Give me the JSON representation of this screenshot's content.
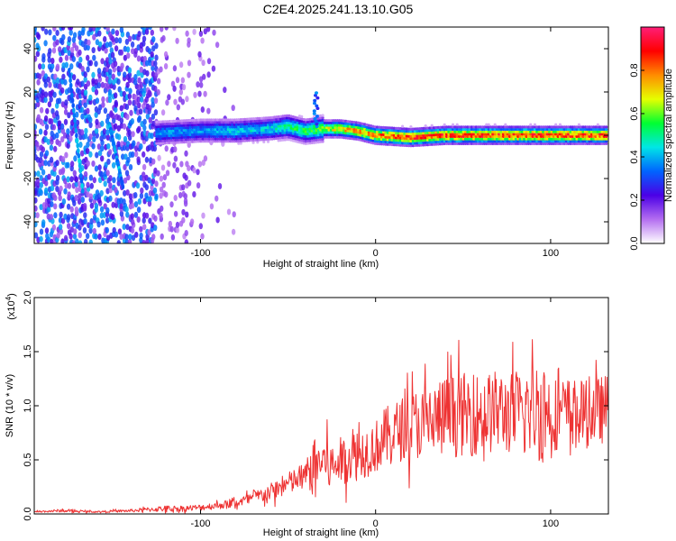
{
  "title": "C2E4.2025.241.13.10.G05",
  "chart_data": [
    {
      "type": "heatmap",
      "name": "spectrogram",
      "xlabel": "Height of straight line (km)",
      "ylabel": "Frequency (Hz)",
      "xlim": [
        -195,
        133
      ],
      "ylim": [
        -50,
        50
      ],
      "xticks": [
        -100,
        0,
        100
      ],
      "xtick_labels": [
        "-100",
        "0",
        "100"
      ],
      "yticks": [
        -40,
        -20,
        0,
        20,
        40
      ],
      "ytick_labels": [
        "-40",
        "-20",
        "0",
        "20",
        "40"
      ],
      "ridge": {
        "x": [
          -125,
          -100,
          -80,
          -60,
          -50,
          -40,
          -30,
          -20,
          -10,
          0,
          20,
          40,
          60,
          80,
          100,
          120,
          133
        ],
        "y": [
          1,
          2,
          2,
          3,
          4,
          2,
          3,
          3,
          2,
          0,
          -1,
          0,
          0,
          0,
          0,
          0,
          0
        ],
        "amplitude": [
          0.4,
          0.4,
          0.45,
          0.45,
          0.55,
          0.55,
          0.65,
          0.75,
          0.8,
          0.85,
          0.9,
          0.9,
          0.9,
          0.9,
          0.9,
          0.88,
          0.88
        ]
      },
      "colorbar": {
        "label": "Normalized spectral amplitude",
        "range": [
          0.0,
          1.0
        ],
        "ticks": [
          0.0,
          0.2,
          0.4,
          0.6,
          0.8
        ],
        "tick_labels": [
          "0.0",
          "0.2",
          "0.4",
          "0.6",
          "0.8"
        ],
        "colors": [
          "#ffffff",
          "#b46ef0",
          "#4b00e6",
          "#0064ff",
          "#00e6e6",
          "#00ff32",
          "#e6ff00",
          "#ff8c00",
          "#ff0000",
          "#ff1e78"
        ]
      }
    },
    {
      "type": "line",
      "name": "snr",
      "xlabel": "Height of straight line (km)",
      "ylabel": "SNR (10 * v/v)",
      "scale_label": "(x10",
      "scale_exp": "4",
      "scale_close": ")",
      "xlim": [
        -195,
        133
      ],
      "ylim": [
        0,
        2.0
      ],
      "xticks": [
        -100,
        0,
        100
      ],
      "xtick_labels": [
        "-100",
        "0",
        "100"
      ],
      "yticks": [
        0.0,
        0.5,
        1.0,
        1.5,
        2.0
      ],
      "ytick_labels": [
        "0.0",
        "0.5",
        "1.0",
        "1.5",
        "2.0"
      ],
      "color": "#ee3333",
      "series": [
        {
          "name": "SNR",
          "x": [
            -195,
            -180,
            -160,
            -140,
            -120,
            -110,
            -100,
            -90,
            -80,
            -70,
            -60,
            -50,
            -40,
            -35,
            -30,
            -25,
            -20,
            -10,
            0,
            5,
            10,
            20,
            30,
            40,
            50,
            60,
            70,
            80,
            90,
            95,
            100,
            110,
            120,
            133
          ],
          "y": [
            0.02,
            0.03,
            0.02,
            0.03,
            0.05,
            0.05,
            0.06,
            0.08,
            0.1,
            0.15,
            0.2,
            0.28,
            0.35,
            0.45,
            0.5,
            0.42,
            0.5,
            0.55,
            0.62,
            0.7,
            0.75,
            0.82,
            0.85,
            0.9,
            0.92,
            0.92,
            0.95,
            0.92,
            0.95,
            1.0,
            0.92,
            0.95,
            0.92,
            0.98
          ],
          "noise": [
            0.01,
            0.02,
            0.01,
            0.02,
            0.04,
            0.04,
            0.04,
            0.05,
            0.06,
            0.08,
            0.12,
            0.15,
            0.2,
            0.35,
            0.3,
            0.35,
            0.3,
            0.35,
            0.35,
            0.4,
            0.4,
            0.45,
            0.5,
            0.55,
            0.55,
            0.55,
            0.55,
            0.55,
            0.6,
            0.8,
            0.5,
            0.45,
            0.45,
            0.45
          ]
        }
      ]
    }
  ]
}
